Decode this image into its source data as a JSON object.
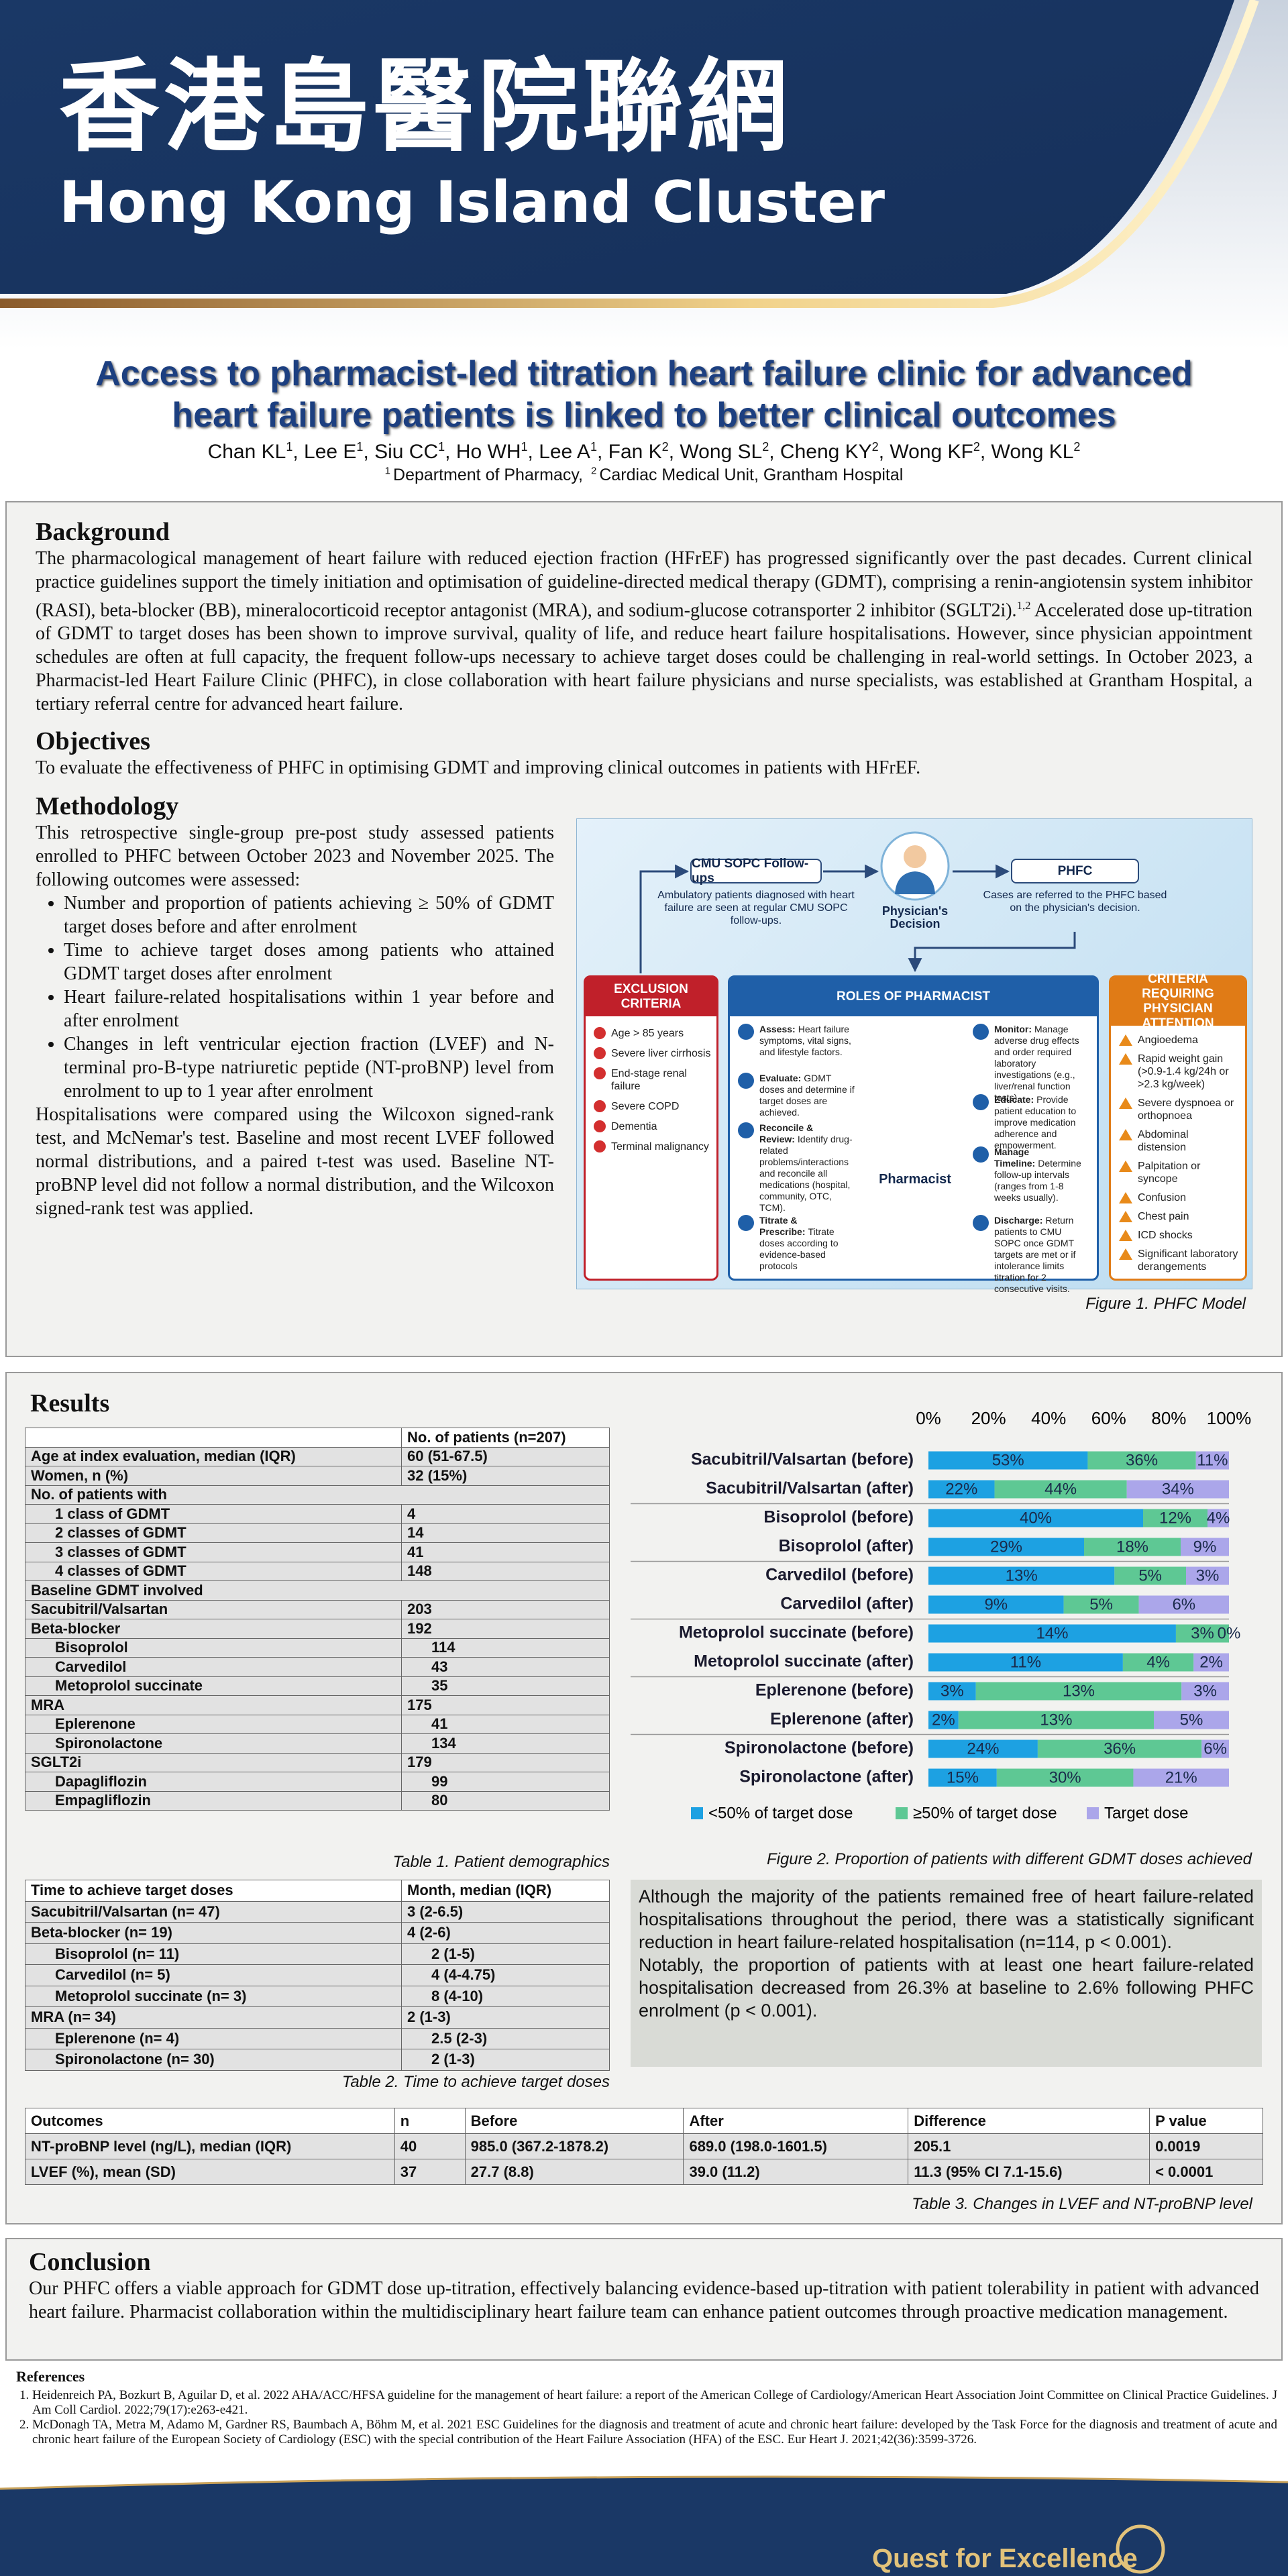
{
  "header": {
    "title_zh": "香港島醫院聯網",
    "title_en": "Hong Kong Island Cluster",
    "footer": "Quest for Excellence"
  },
  "title": "Access to pharmacist-led titration heart failure clinic for advanced heart failure patients is linked to better clinical outcomes",
  "authors": [
    {
      "name": "Chan KL",
      "sup": "1"
    },
    {
      "name": "Lee E",
      "sup": "1"
    },
    {
      "name": "Siu CC",
      "sup": "1"
    },
    {
      "name": "Ho WH",
      "sup": "1"
    },
    {
      "name": "Lee A",
      "sup": "1"
    },
    {
      "name": "Fan K",
      "sup": "2"
    },
    {
      "name": "Wong SL",
      "sup": "2"
    },
    {
      "name": "Cheng KY",
      "sup": "2"
    },
    {
      "name": "Wong KF",
      "sup": "2"
    },
    {
      "name": "Wong KL",
      "sup": "2"
    }
  ],
  "affiliations": [
    {
      "sup": "1",
      "text": "Department of Pharmacy,"
    },
    {
      "sup": "2",
      "text": "Cardiac Medical Unit, Grantham Hospital"
    }
  ],
  "background": {
    "heading": "Background",
    "text_before": "The pharmacological management of heart failure with reduced ejection fraction (HFrEF) has progressed significantly over the past decades. Current clinical practice guidelines support the timely initiation and optimisation of guideline-directed medical therapy (GDMT), comprising a renin-angiotensin system inhibitor (RASI), beta-blocker (BB), mineralocorticoid receptor antagonist (MRA), and sodium-glucose cotransporter 2 inhibitor (SGLT2i).",
    "ref": "1,2",
    "text_after": " Accelerated dose up-titration of GDMT to target doses has been shown to improve survival, quality of life, and reduce heart failure hospitalisations. However, since physician appointment schedules are often at full capacity, the frequent follow-ups necessary to achieve target doses could be challenging in real-world settings. In October 2023, a Pharmacist-led Heart Failure Clinic (PHFC), in close collaboration with heart failure physicians and nurse specialists, was established at Grantham Hospital, a tertiary referral centre for advanced heart failure."
  },
  "objectives": {
    "heading": "Objectives",
    "text": "To evaluate the effectiveness of PHFC in optimising GDMT and improving clinical outcomes in patients with HFrEF."
  },
  "methodology": {
    "heading": "Methodology",
    "intro": "This retrospective single-group pre-post study assessed patients enrolled to PHFC between October 2023 and November 2025.  The following outcomes were assessed:",
    "bullets": [
      "Number and proportion of patients achieving ≥ 50% of GDMT target doses before and after enrolment",
      "Time to achieve target doses among patients who attained GDMT target doses after enrolment",
      "Heart failure-related hospitalisations within 1 year before and after enrolment",
      "Changes in left ventricular ejection fraction (LVEF) and N-terminal pro-B-type natriuretic peptide (NT-proBNP) level from enrolment to up to 1 year after enrolment"
    ],
    "closing": "Hospitalisations were compared using the Wilcoxon signed-rank test, and McNemar's test. Baseline and most recent LVEF followed normal distributions, and a paired t-test was used. Baseline NT-proBNP level did not follow a normal distribution, and the Wilcoxon signed-rank test was applied."
  },
  "figure1": {
    "caption": "Figure 1. PHFC Model",
    "cmu": {
      "title": "CMU SOPC Follow-ups",
      "text": "Ambulatory patients diagnosed with heart failure are seen at regular CMU SOPC follow-ups."
    },
    "decision": "Physician's Decision",
    "phfc": {
      "title": "PHFC",
      "text": "Cases are referred to the PHFC based on the physician's decision."
    },
    "exclusion": {
      "title": "EXCLUSION CRITERIA",
      "items": [
        "Age > 85 years",
        "Severe liver cirrhosis",
        "End-stage renal failure",
        "Severe COPD",
        "Dementia",
        "Terminal malignancy"
      ]
    },
    "roles": {
      "title": "ROLES OF PHARMACIST",
      "pharmacist": "Pharmacist",
      "items": [
        {
          "title": "Assess:",
          "text": "Heart failure symptoms, vital signs, and lifestyle factors."
        },
        {
          "title": "Evaluate:",
          "text": "GDMT doses and determine if target doses are achieved."
        },
        {
          "title": "Reconcile & Review:",
          "text": "Identify drug-related problems/interactions and reconcile all medications (hospital, community, OTC, TCM)."
        },
        {
          "title": "Titrate & Prescribe:",
          "text": "Titrate doses according to evidence-based protocols"
        },
        {
          "title": "Monitor:",
          "text": "Manage adverse drug effects and order required laboratory investigations (e.g., liver/renal function tests)."
        },
        {
          "title": "Educate:",
          "text": "Provide patient education to improve medication adherence and empowerment."
        },
        {
          "title": "Manage Timeline:",
          "text": "Determine follow-up intervals (ranges from 1-8 weeks usually)."
        },
        {
          "title": "Discharge:",
          "text": "Return patients to CMU SOPC once GDMT targets are met or if intolerance limits titration for 2 consecutive visits."
        }
      ]
    },
    "criteria": {
      "title": "CRITERIA REQUIRING PHYSICIAN ATTENTION",
      "items": [
        "Angioedema",
        "Rapid weight gain (>0.9-1.4 kg/24h or >2.3 kg/week)",
        "Severe dyspnoea or orthopnoea",
        "Abdominal distension",
        "Palpitation or syncope",
        "Confusion",
        "Chest pain",
        "ICD shocks",
        "Significant laboratory derangements"
      ]
    }
  },
  "results": {
    "heading": "Results",
    "table1": {
      "header": "No. of patients (n=207)",
      "caption": "Table 1. Patient demographics",
      "rows": [
        {
          "label": "Age at index evaluation, median (IQR)",
          "value": "60 (51-67.5)"
        },
        {
          "label": "Women, n (%)",
          "value": "32 (15%)"
        },
        {
          "label": "No. of patients with",
          "children": [
            {
              "label": "1 class of GDMT",
              "value": "4"
            },
            {
              "label": "2 classes of GDMT",
              "value": "14"
            },
            {
              "label": "3 classes of GDMT",
              "value": "41"
            },
            {
              "label": "4 classes of GDMT",
              "value": "148"
            }
          ]
        },
        {
          "label": "Baseline GDMT involved"
        },
        {
          "label": "Sacubitril/Valsartan",
          "value": "203"
        },
        {
          "label": "Beta-blocker",
          "value": "192",
          "children": [
            {
              "label": "Bisoprolol",
              "value": "114"
            },
            {
              "label": "Carvedilol",
              "value": "43"
            },
            {
              "label": "Metoprolol succinate",
              "value": "35"
            }
          ]
        },
        {
          "label": "MRA",
          "value": "175",
          "children": [
            {
              "label": "Eplerenone",
              "value": "41"
            },
            {
              "label": "Spironolactone",
              "value": "134"
            }
          ]
        },
        {
          "label": "SGLT2i",
          "value": "179",
          "children": [
            {
              "label": "Dapagliflozin",
              "value": "99"
            },
            {
              "label": "Empagliflozin",
              "value": "80"
            }
          ]
        }
      ]
    },
    "table2": {
      "header": [
        "Time to achieve target doses",
        "Month, median (IQR)"
      ],
      "caption": "Table 2. Time to achieve target doses",
      "rows": [
        {
          "label": "Sacubitril/Valsartan (n= 47)",
          "value": "3 (2-6.5)"
        },
        {
          "label": "Beta-blocker (n= 19)",
          "value": "4 (2-6)",
          "children": [
            {
              "label": "Bisoprolol (n= 11)",
              "value": "2 (1-5)"
            },
            {
              "label": "Carvedilol (n= 5)",
              "value": "4 (4-4.75)"
            },
            {
              "label": "Metoprolol succinate (n= 3)",
              "value": "8 (4-10)"
            }
          ]
        },
        {
          "label": "MRA (n= 34)",
          "value": "2 (1-3)",
          "children": [
            {
              "label": "Eplerenone (n= 4)",
              "value": "2.5 (2-3)"
            },
            {
              "label": "Spironolactone (n= 30)",
              "value": "2 (1-3)"
            }
          ]
        }
      ]
    },
    "figure2": {
      "type": "bar",
      "orientation": "horizontal",
      "stacked": "percent",
      "caption": "Figure 2. Proportion of patients with different GDMT doses achieved",
      "categories": [
        "Sacubitril/Valsartan (before)",
        "Sacubitril/Valsartan (after)",
        "Bisoprolol (before)",
        "Bisoprolol (after)",
        "Carvedilol (before)",
        "Carvedilol (after)",
        "Metoprolol succinate (before)",
        "Metoprolol succinate (after)",
        "Eplerenone (before)",
        "Eplerenone (after)",
        "Spironolactone (before)",
        "Spironolactone (after)"
      ],
      "xlim": [
        0,
        100
      ],
      "xticks": [
        {
          "value": 0,
          "label": "0%"
        },
        {
          "value": 20,
          "label": "20%"
        },
        {
          "value": 40,
          "label": "40%"
        },
        {
          "value": 60,
          "label": "60%"
        },
        {
          "value": 80,
          "label": "80%"
        },
        {
          "value": 100,
          "label": "100%"
        }
      ],
      "series": [
        {
          "name": "<50% of target dose",
          "color": "#1da1e2",
          "values": [
            53,
            22,
            40,
            29,
            13,
            9,
            14,
            11,
            3,
            2,
            24,
            15
          ],
          "value_labels": [
            "53%",
            "22%",
            "40%",
            "29%",
            "13%",
            "9%",
            "14%",
            "11%",
            "3%",
            "2%",
            "24%",
            "15%"
          ]
        },
        {
          "name": "≥50% of target dose",
          "color": "#5ec894",
          "values": [
            36,
            44,
            12,
            18,
            5,
            5,
            3,
            4,
            13,
            13,
            36,
            30
          ],
          "value_labels": [
            "36%",
            "44%",
            "12%",
            "18%",
            "5%",
            "5%",
            "3%",
            "4%",
            "13%",
            "13%",
            "36%",
            "30%"
          ]
        },
        {
          "name": "Target dose",
          "color": "#aba6ea",
          "values": [
            11,
            34,
            4,
            9,
            3,
            6,
            0,
            2,
            3,
            5,
            6,
            21
          ],
          "value_labels": [
            "11%",
            "34%",
            "4%",
            "9%",
            "3%",
            "6%",
            "0%",
            "2%",
            "3%",
            "5%",
            "6%",
            "21%"
          ]
        }
      ]
    },
    "findings": [
      "Although the majority of the patients remained free of heart failure-related hospitalisations throughout the period, there was a statistically significant reduction in heart failure-related hospitalisation (n=114, p < 0.001).",
      "Notably, the proportion of patients with at least one heart failure-related hospitalisation decreased from 26.3% at baseline to 2.6% following PHFC enrolment (p < 0.001)."
    ],
    "table3": {
      "caption": "Table 3. Changes in LVEF and NT-proBNP level",
      "header": [
        "Outcomes",
        "n",
        "Before",
        "After",
        "Difference",
        "P value"
      ],
      "rows": [
        [
          "NT-proBNP level (ng/L), median (IQR)",
          "40",
          "985.0 (367.2-1878.2)",
          "689.0 (198.0-1601.5)",
          "205.1",
          "0.0019"
        ],
        [
          "LVEF (%), mean (SD)",
          "37",
          "27.7 (8.8)",
          "39.0 (11.2)",
          "11.3 (95% CI 7.1-15.6)",
          "< 0.0001"
        ]
      ]
    }
  },
  "conclusion": {
    "heading": "Conclusion",
    "text": "Our PHFC offers a viable approach for GDMT dose up-titration, effectively balancing evidence-based up-titration with patient tolerability in patient with advanced heart failure. Pharmacist collaboration within the multidisciplinary heart failure team can enhance patient outcomes through proactive medication management."
  },
  "references": {
    "heading": "References",
    "items": [
      "Heidenreich PA, Bozkurt B, Aguilar D, et al. 2022 AHA/ACC/HFSA guideline for the management of heart failure: a report of the American College of Cardiology/American Heart Association Joint Committee on Clinical Practice Guidelines. J Am Coll Cardiol. 2022;79(17):e263-e421.",
      "McDonagh TA, Metra M, Adamo M, Gardner RS, Baumbach A, Böhm M, et al. 2021 ESC Guidelines for the diagnosis and treatment of acute and chronic heart failure: developed by the Task Force for the diagnosis and treatment of acute and chronic heart failure of the European Society of Cardiology (ESC) with the special contribution of the Heart Failure Association (HFA) of the ESC. Eur Heart J. 2021;42(36):3599-3726."
    ]
  }
}
